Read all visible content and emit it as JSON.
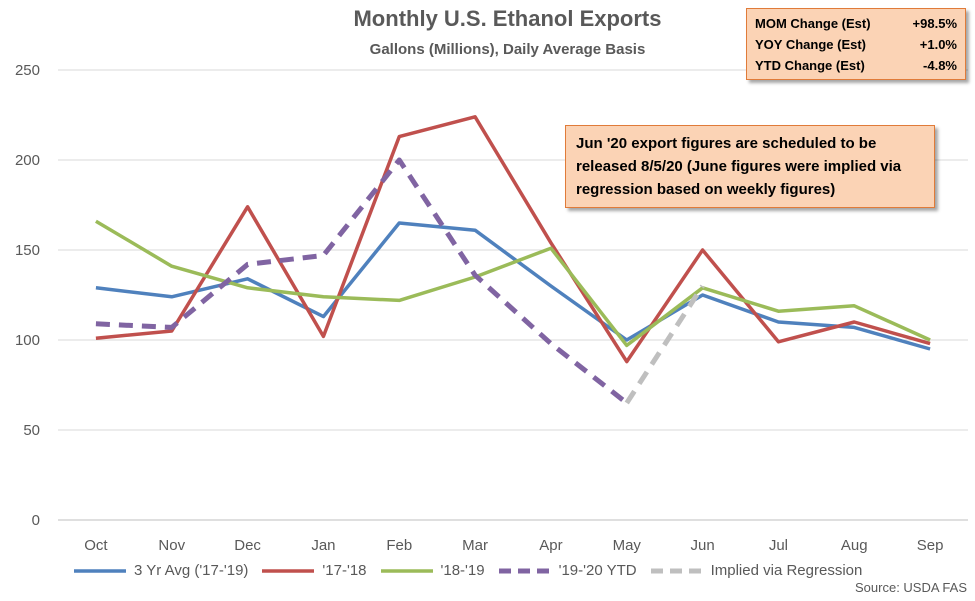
{
  "chart_data": {
    "type": "line",
    "title": "Monthly U.S. Ethanol Exports",
    "subtitle": "Gallons (Millions), Daily Average Basis",
    "categories": [
      "Oct",
      "Nov",
      "Dec",
      "Jan",
      "Feb",
      "Mar",
      "Apr",
      "May",
      "Jun",
      "Jul",
      "Aug",
      "Sep"
    ],
    "ylim": [
      0,
      250
    ],
    "yticks": [
      0,
      50,
      100,
      150,
      200,
      250
    ],
    "grid": true,
    "legend_position": "bottom",
    "series": [
      {
        "name": "3 Yr Avg ('17-'19)",
        "color": "#4f81bd",
        "dashed": false,
        "values": [
          129,
          124,
          134,
          113,
          165,
          161,
          130,
          100,
          125,
          110,
          107,
          95
        ]
      },
      {
        "name": "'17-'18",
        "color": "#c0504d",
        "dashed": false,
        "values": [
          101,
          105,
          174,
          102,
          213,
          224,
          154,
          88,
          150,
          99,
          110,
          98
        ]
      },
      {
        "name": "'18-'19",
        "color": "#9bbb59",
        "dashed": false,
        "values": [
          166,
          141,
          129,
          124,
          122,
          135,
          151,
          97,
          129,
          116,
          119,
          100
        ]
      },
      {
        "name": "'19-'20 YTD",
        "color": "#8064a2",
        "dashed": true,
        "values": [
          109,
          107,
          142,
          147,
          200,
          136,
          98,
          65,
          null,
          null,
          null,
          null
        ]
      },
      {
        "name": "Implied via Regression",
        "color": "#bfbfbf",
        "dashed": true,
        "values": [
          null,
          null,
          null,
          null,
          null,
          null,
          null,
          65,
          130,
          null,
          null,
          null
        ]
      }
    ]
  },
  "stats": [
    {
      "label": "MOM Change (Est)",
      "value": "+98.5%"
    },
    {
      "label": "YOY Change (Est)",
      "value": "+1.0%"
    },
    {
      "label": "YTD Change (Est)",
      "value": "-4.8%"
    }
  ],
  "note": "Jun '20 export figures are scheduled to be released 8/5/20 (June figures were implied via regression based on weekly figures)",
  "source": "Source: USDA FAS"
}
